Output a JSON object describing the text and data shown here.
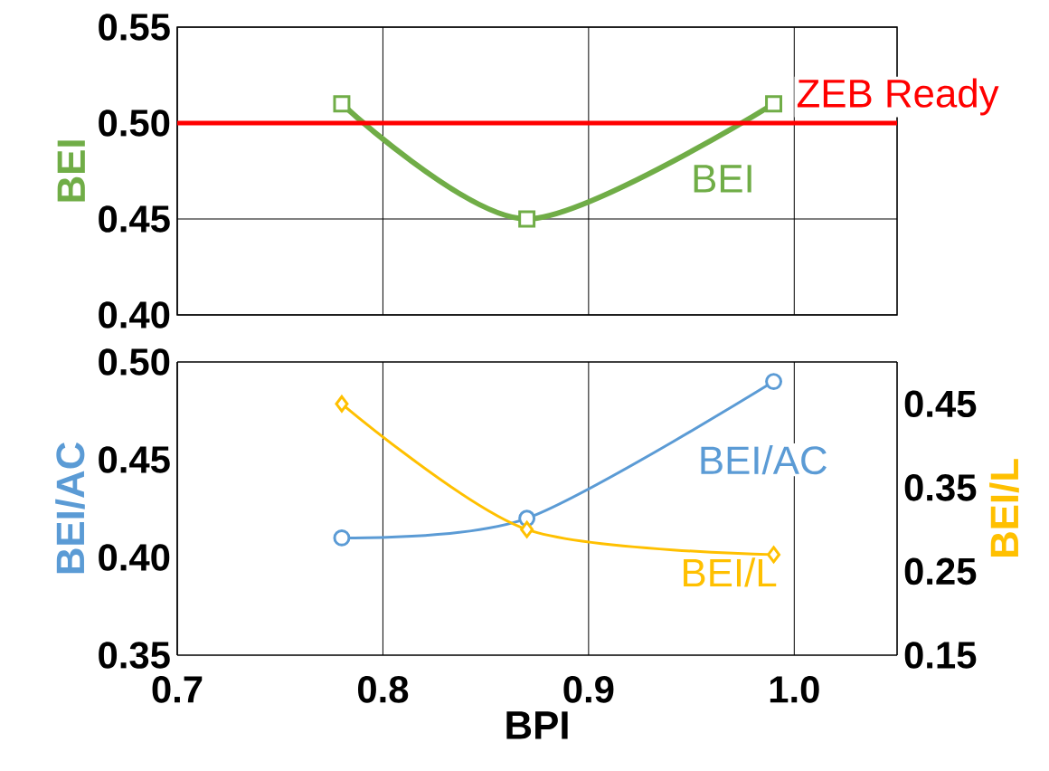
{
  "chart_data": [
    {
      "type": "line",
      "ylabel": "BEI",
      "x": [
        0.78,
        0.87,
        0.99
      ],
      "xlim": [
        0.7,
        1.05
      ],
      "xticks": [
        0.7,
        0.8,
        0.9,
        1.0
      ],
      "ylim": [
        0.4,
        0.55
      ],
      "yticks": [
        {
          "value": 0.4,
          "label": "0.40"
        },
        {
          "value": 0.45,
          "label": "0.45"
        },
        {
          "value": 0.5,
          "label": "0.50"
        },
        {
          "value": 0.55,
          "label": "0.55"
        }
      ],
      "grid": true,
      "tick_labels": "y",
      "series": [
        {
          "name": "BEI",
          "color": "#70ad47",
          "marker": "square",
          "values": [
            0.51,
            0.45,
            0.51
          ]
        }
      ],
      "ref_lines": [
        {
          "axis": "y",
          "value": 0.5,
          "label": "ZEB Ready",
          "color": "#ff0000"
        }
      ]
    },
    {
      "type": "line",
      "xlabel": "BPI",
      "ylabel": "BEI/AC",
      "y2label": "BEI/L",
      "x": [
        0.78,
        0.87,
        0.99
      ],
      "xlim": [
        0.7,
        1.05
      ],
      "xticks": [
        {
          "value": 0.7,
          "label": "0.7"
        },
        {
          "value": 0.8,
          "label": "0.8"
        },
        {
          "value": 0.9,
          "label": "0.9"
        },
        {
          "value": 1.0,
          "label": "1.0"
        }
      ],
      "ylim": [
        0.35,
        0.5
      ],
      "yticks": [
        {
          "value": 0.35,
          "label": "0.35"
        },
        {
          "value": 0.4,
          "label": "0.40"
        },
        {
          "value": 0.45,
          "label": "0.45"
        },
        {
          "value": 0.5,
          "label": "0.50"
        }
      ],
      "y2lim": [
        0.15,
        0.5
      ],
      "y2ticks": [
        0.15,
        0.25,
        0.35,
        0.45
      ],
      "grid": "x",
      "series": [
        {
          "name": "BEI/AC",
          "color": "#5b9bd5",
          "marker": "circle",
          "values": [
            0.41,
            0.42,
            0.49
          ]
        },
        {
          "name": "BEI/L",
          "color": "#ffc000",
          "marker": "diamond",
          "axis": "y2",
          "values": [
            0.45,
            0.3,
            0.27
          ]
        }
      ]
    }
  ]
}
